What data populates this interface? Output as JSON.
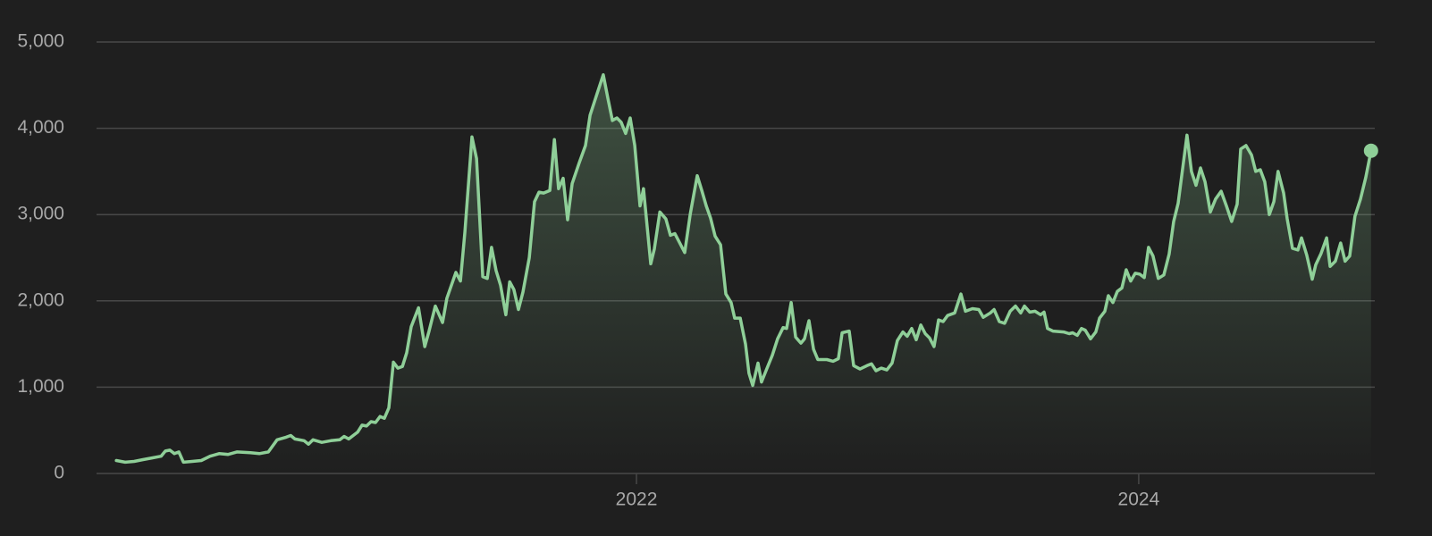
{
  "chart_data": {
    "type": "line",
    "color": "#8fcf98",
    "grid": true,
    "xlim": [
      2019.85,
      2024.94
    ],
    "xticks": [
      2022,
      2024
    ],
    "ylim": [
      0,
      5000
    ],
    "yticks": [
      0,
      {
        "value": 1000,
        "label": "1,000"
      },
      {
        "value": 2000,
        "label": "2,000"
      },
      {
        "value": 3000,
        "label": "3,000"
      },
      {
        "value": 4000,
        "label": "4,000"
      },
      {
        "value": 5000,
        "label": "5,000"
      }
    ],
    "x": [
      2019.929,
      2019.964,
      2020.0,
      2020.035,
      2020.071,
      2020.107,
      2020.124,
      2020.142,
      2020.16,
      2020.178,
      2020.196,
      2020.231,
      2020.267,
      2020.302,
      2020.338,
      2020.374,
      2020.409,
      2020.463,
      2020.498,
      2020.534,
      2020.569,
      2020.605,
      2020.623,
      2020.64,
      2020.676,
      2020.694,
      2020.712,
      2020.747,
      2020.783,
      2020.818,
      2020.836,
      2020.854,
      2020.89,
      2020.907,
      2020.925,
      2020.943,
      2020.961,
      2020.979,
      2020.996,
      2021.014,
      2021.032,
      2021.05,
      2021.068,
      2021.085,
      2021.103,
      2021.132,
      2021.157,
      2021.174,
      2021.199,
      2021.228,
      2021.245,
      2021.281,
      2021.299,
      2021.317,
      2021.345,
      2021.363,
      2021.388,
      2021.406,
      2021.423,
      2021.441,
      2021.459,
      2021.48,
      2021.495,
      2021.512,
      2021.53,
      2021.548,
      2021.573,
      2021.594,
      2021.612,
      2021.63,
      2021.655,
      2021.673,
      2021.69,
      2021.708,
      2021.726,
      2021.744,
      2021.772,
      2021.797,
      2021.815,
      2021.843,
      2021.868,
      2021.886,
      2021.904,
      2021.922,
      2021.939,
      2021.957,
      2021.975,
      2021.993,
      2022.014,
      2022.028,
      2022.057,
      2022.071,
      2022.093,
      2022.117,
      2022.135,
      2022.153,
      2022.178,
      2022.192,
      2022.214,
      2022.242,
      2022.26,
      2022.278,
      2022.295,
      2022.313,
      2022.335,
      2022.356,
      2022.377,
      2022.391,
      2022.413,
      2022.434,
      2022.448,
      2022.463,
      2022.484,
      2022.498,
      2022.52,
      2022.541,
      2022.562,
      2022.584,
      2022.598,
      2022.616,
      2022.634,
      2022.655,
      2022.669,
      2022.687,
      2022.705,
      2022.722,
      2022.758,
      2022.783,
      2022.804,
      2022.819,
      2022.847,
      2022.865,
      2022.89,
      2022.918,
      2022.936,
      2022.954,
      2022.975,
      2022.997,
      2023.018,
      2023.039,
      2023.061,
      2023.078,
      2023.096,
      2023.114,
      2023.132,
      2023.15,
      2023.167,
      2023.185,
      2023.203,
      2023.221,
      2023.239,
      2023.267,
      2023.292,
      2023.31,
      2023.338,
      2023.363,
      2023.381,
      2023.409,
      2023.424,
      2023.445,
      2023.466,
      2023.488,
      2023.509,
      2023.53,
      2023.545,
      2023.566,
      2023.587,
      2023.609,
      2023.623,
      2023.637,
      2023.658,
      2023.701,
      2023.723,
      2023.737,
      2023.755,
      2023.772,
      2023.787,
      2023.808,
      2023.829,
      2023.844,
      2023.865,
      2023.879,
      2023.897,
      2023.915,
      2023.933,
      2023.95,
      2023.968,
      2023.986,
      2024.004,
      2024.022,
      2024.039,
      2024.057,
      2024.078,
      2024.1,
      2024.121,
      2024.139,
      2024.157,
      2024.192,
      2024.21,
      2024.228,
      2024.246,
      2024.264,
      2024.285,
      2024.306,
      2024.328,
      2024.349,
      2024.37,
      2024.392,
      2024.406,
      2024.427,
      2024.449,
      2024.466,
      2024.484,
      2024.502,
      2024.52,
      2024.538,
      2024.555,
      2024.577,
      2024.591,
      2024.612,
      2024.634,
      2024.648,
      2024.669,
      2024.691,
      2024.705,
      2024.726,
      2024.748,
      2024.762,
      2024.783,
      2024.804,
      2024.822,
      2024.84,
      2024.861,
      2024.883,
      2024.904,
      2024.925
    ],
    "values": [
      150,
      130,
      140,
      160,
      180,
      200,
      260,
      270,
      230,
      250,
      130,
      140,
      150,
      200,
      230,
      220,
      250,
      240,
      230,
      250,
      390,
      420,
      440,
      400,
      380,
      340,
      390,
      360,
      380,
      390,
      430,
      400,
      480,
      560,
      550,
      600,
      590,
      660,
      640,
      760,
      1290,
      1220,
      1240,
      1400,
      1700,
      1920,
      1470,
      1650,
      1940,
      1750,
      2030,
      2330,
      2230,
      2800,
      3900,
      3650,
      2280,
      2260,
      2620,
      2350,
      2180,
      1840,
      2220,
      2130,
      1900,
      2100,
      2500,
      3150,
      3260,
      3250,
      3280,
      3870,
      3300,
      3420,
      2940,
      3360,
      3600,
      3800,
      4150,
      4400,
      4620,
      4350,
      4090,
      4120,
      4070,
      3940,
      4120,
      3800,
      3100,
      3300,
      2430,
      2600,
      3030,
      2950,
      2760,
      2780,
      2640,
      2560,
      3000,
      3450,
      3280,
      3100,
      2960,
      2750,
      2650,
      2080,
      1980,
      1800,
      1800,
      1500,
      1160,
      1020,
      1280,
      1060,
      1220,
      1370,
      1560,
      1690,
      1680,
      1980,
      1580,
      1510,
      1560,
      1770,
      1440,
      1320,
      1320,
      1300,
      1330,
      1630,
      1650,
      1250,
      1210,
      1250,
      1270,
      1190,
      1220,
      1200,
      1280,
      1540,
      1640,
      1590,
      1680,
      1550,
      1720,
      1620,
      1570,
      1470,
      1780,
      1760,
      1830,
      1860,
      2080,
      1880,
      1910,
      1900,
      1810,
      1860,
      1900,
      1760,
      1740,
      1880,
      1940,
      1860,
      1940,
      1870,
      1880,
      1840,
      1870,
      1680,
      1650,
      1640,
      1620,
      1630,
      1600,
      1680,
      1660,
      1560,
      1640,
      1800,
      1880,
      2060,
      1980,
      2110,
      2150,
      2360,
      2230,
      2320,
      2310,
      2270,
      2620,
      2520,
      2260,
      2300,
      2540,
      2920,
      3130,
      3920,
      3500,
      3340,
      3540,
      3380,
      3030,
      3180,
      3270,
      3100,
      2920,
      3120,
      3760,
      3800,
      3690,
      3500,
      3520,
      3380,
      3000,
      3150,
      3500,
      3250,
      2950,
      2610,
      2590,
      2730,
      2530,
      2250,
      2420,
      2550,
      2730,
      2400,
      2460,
      2670,
      2460,
      2520,
      2980,
      3180,
      3430,
      3740
    ]
  }
}
